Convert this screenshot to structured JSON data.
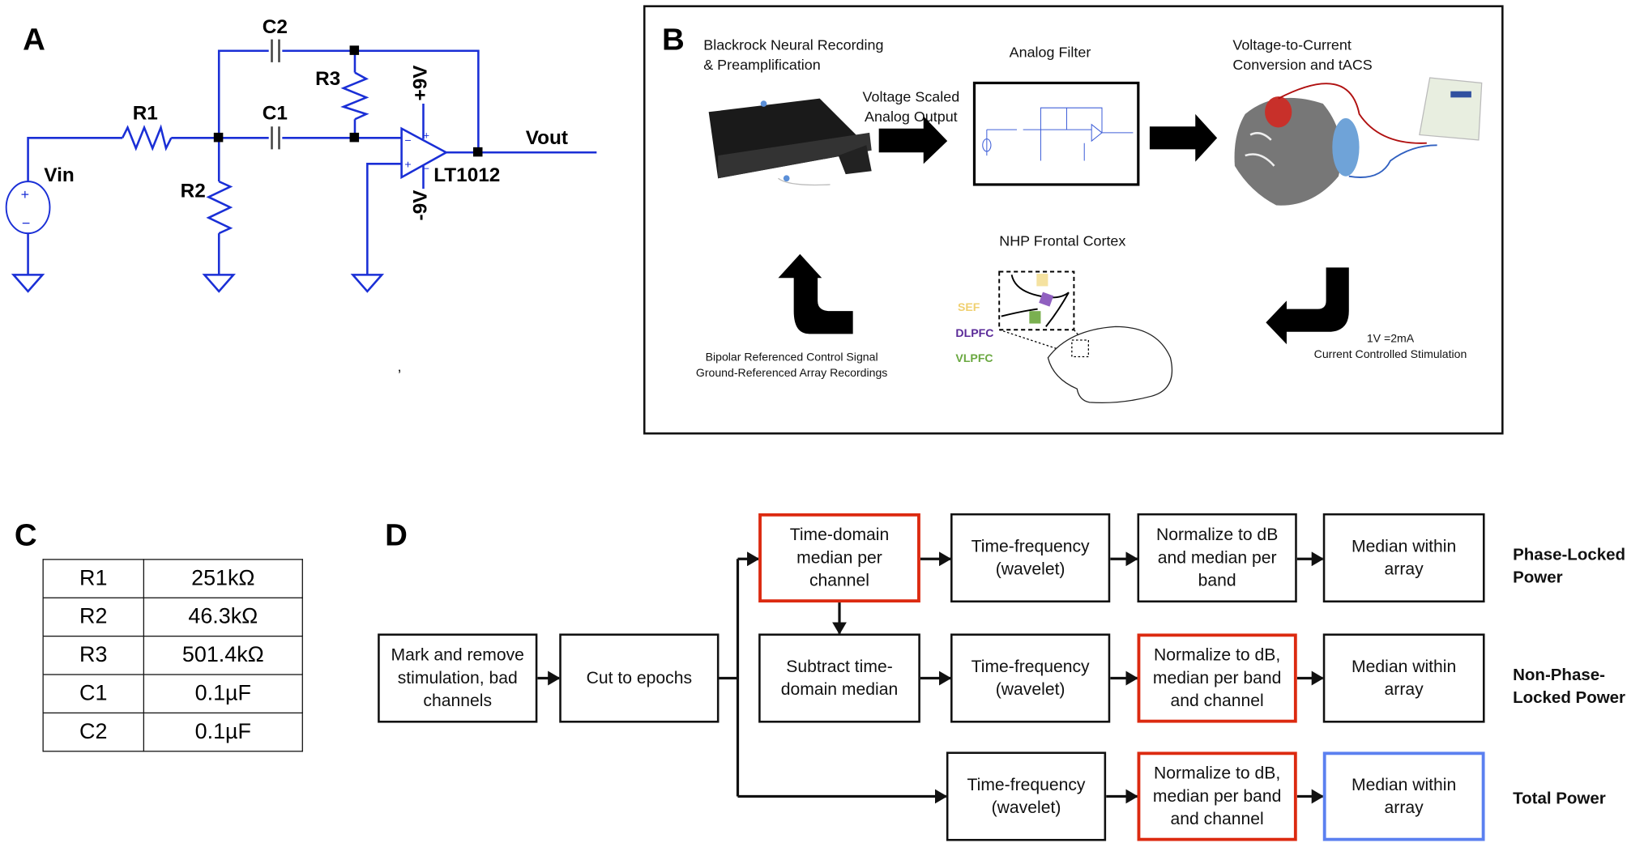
{
  "panel_a": {
    "label": "A",
    "components": {
      "c2": "C2",
      "r1": "R1",
      "c1": "C1",
      "r3": "R3",
      "r2": "R2",
      "vin": "Vin",
      "vout": "Vout",
      "opamp": "LT1012",
      "vpos": "+9V",
      "vneg": "-9V"
    },
    "stray_mark": ","
  },
  "panel_b": {
    "label": "B",
    "recording_title": "Blackrock Neural Recording\n& Preamplification",
    "voltage_output": "Voltage Scaled\nAnalog Output",
    "filter_title": "Analog Filter",
    "conversion_title": "Voltage-to-Current\nConversion and tACS",
    "cortex_title": "NHP Frontal Cortex",
    "regions": [
      {
        "name": "SEF",
        "color": "#f5e2a0"
      },
      {
        "name": "DLPFC",
        "color": "#6a2fa8"
      },
      {
        "name": "VLPFC",
        "color": "#6aa840"
      }
    ],
    "feedback_caption": "Bipolar Referenced Control Signal\nGround-Referenced Array Recordings",
    "stim_scale": "1V =2mA",
    "stim_caption": "Current Controlled Stimulation"
  },
  "panel_c": {
    "label": "C",
    "rows": [
      {
        "name": "R1",
        "value": "251kΩ"
      },
      {
        "name": "R2",
        "value": "46.3kΩ"
      },
      {
        "name": "R3",
        "value": "501.4kΩ"
      },
      {
        "name": "C1",
        "value": "0.1µF"
      },
      {
        "name": "C2",
        "value": "0.1µF"
      }
    ]
  },
  "panel_d": {
    "label": "D",
    "boxes": {
      "mark": "Mark and remove\nstimulation, bad\nchannels",
      "cut": "Cut to epochs",
      "td_median": "Time-domain\nmedian per\nchannel",
      "subtract": "Subtract time-\ndomain median",
      "tf1": "Time-frequency\n(wavelet)",
      "norm1": "Normalize to dB\nand median per\nband",
      "med1": "Median within\narray",
      "tf2": "Time-frequency\n(wavelet)",
      "norm2": "Normalize to dB,\nmedian per band\nand channel",
      "med2": "Median within\narray",
      "tf3": "Time-frequency\n(wavelet)",
      "norm3": "Normalize to dB,\nmedian per band\nand channel",
      "med3": "Median within\narray"
    },
    "row_labels": [
      "Phase-Locked\nPower",
      "Non-Phase-\nLocked Power",
      "Total Power"
    ]
  },
  "colors": {
    "schematic_wire": "#1a2fd6",
    "highlight_red": "#dc2a10",
    "highlight_blue": "#5b80f0"
  }
}
